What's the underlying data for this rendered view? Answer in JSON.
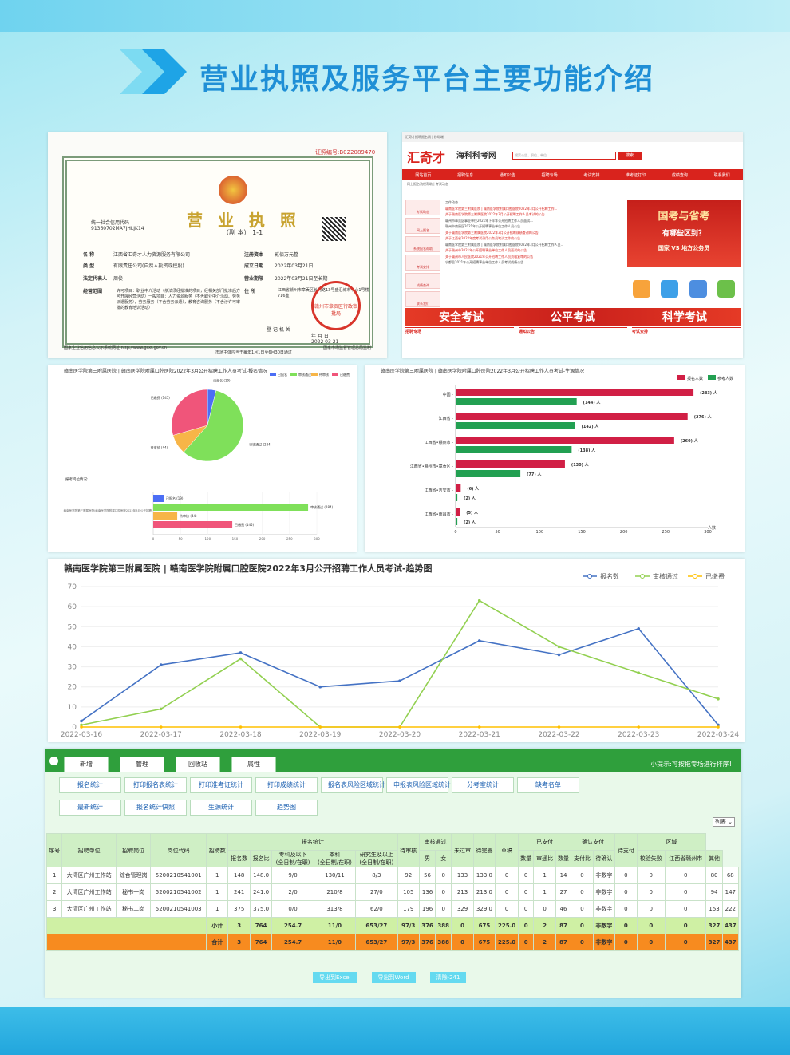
{
  "page": {
    "title": "营业执照及服务平台主要功能介绍"
  },
  "license": {
    "number_label": "证照编号:",
    "number": "B022089470",
    "title": "营 业 执 照",
    "copy": "（副 本）",
    "copy_index": "1-1",
    "usc_label": "统一社会信用代码",
    "usc": "91360702MA7JHLJK14",
    "name_label": "名 称",
    "name": "江西省汇奇才人力资源服务有限公司",
    "type_label": "类 型",
    "type": "有限责任公司(自然人投资或控股)",
    "rep_label": "法定代表人",
    "rep": "周俊",
    "scope_label": "经营范围",
    "scope": "许可项目：职业中介活动（依法须经批准的项目，经相关部门批准后方可开展经营活动）一般项目：人力资源服务（不含职业中介活动、劳务派遣服务），劳务服务（不含劳务派遣），教育咨询服务（不含涉许可审批的教育培训活动）",
    "capital_label": "注册资本",
    "capital": "贰佰万元整",
    "date_label": "成立日期",
    "date": "2022年03月21日",
    "term_label": "营业期限",
    "term": "2022年03月21日至长期",
    "addr_label": "住 所",
    "addr": "江西省赣州市章贡区长冈路13号盛汇城市中心1号楼716室",
    "authority_label": "登 记 机 关",
    "seal": "赣州市章贡区行政审批局",
    "seal_date": "2022 03 21",
    "year_label": "年 月 日",
    "foot_left": "国家企业信用信息公示系统网址",
    "foot_url": "http://www.gsxt.gov.cn",
    "foot_mid": "市场主体应当于每年1月1日至6月30日通过",
    "foot_right": "国家市场监督管理总局监制"
  },
  "portal": {
    "topbar": "汇奇才招聘报名网  |  移动端",
    "logo": "汇奇才",
    "logo2": "海科科考网",
    "search_placeholder": "搜索公告、职位、单位",
    "search_btn": "搜索",
    "nav": [
      "网站首页",
      "招聘信息",
      "通知公告",
      "招聘专场",
      "考试安排",
      "准考证打印",
      "成绩查询",
      "联系我们"
    ],
    "crumb": "网上报名流程帮助  |  考试动态",
    "side": [
      "考试动态",
      "网上报名",
      "系统报名帮助",
      "考试安排",
      "成绩查询",
      "联系我们"
    ],
    "news": [
      {
        "t": "工作动态",
        "r": false
      },
      {
        "t": "赣南医学院第三附属医院 | 赣南医学院附属口腔医院2022年3月公开招聘工作...",
        "r": true
      },
      {
        "t": "关于赣南医学院第三附属医院2022年3月公开招聘工作人员考试的公告",
        "r": true
      },
      {
        "t": "赣州市章贡区事业单位2021年下半年公开招聘工作人员面试...",
        "r": false
      },
      {
        "t": "赣州市南康区2021年公开招聘事业单位工作人员公告",
        "r": false
      },
      {
        "t": "关于赣南医学院第三附属医院2022年3月公开招聘成绩查询的公告",
        "r": true
      },
      {
        "t": "关于江西省2022年度考试录用公务员笔试工作的公告",
        "r": true
      },
      {
        "t": "赣南医学院第三附属医院 | 赣南医学院附属口腔医院2022年3月公开招聘工作人员...",
        "r": false
      },
      {
        "t": "关于赣州市2021年公开招聘事业单位工作人员面试的公告",
        "r": true
      },
      {
        "t": "关于赣州市人民医院2021年公开招聘工作人员资格复审的公告",
        "r": true
      },
      {
        "t": "宁都县2021年公开招聘事业单位工作人员考试成绩公告",
        "r": false
      }
    ],
    "ad1": "国考与省考",
    "ad2": "有哪些区别？",
    "ad3": "国家  VS  地方公务员",
    "banner": [
      "安全考试",
      "公平考试",
      "科学考试"
    ],
    "bottom_titles": [
      "招聘专场",
      "通知公告",
      "考试安排"
    ]
  },
  "chart_pie_title": "赣南医学院第三附属医院 | 赣南医学院附属口腔医院2022年3月公开招聘工作人员考试-报名情况",
  "chart_bar_title": "赣南医学院第三附属医院 | 赣南医学院附属口腔医院2022年3月公开招聘工作人员考试-生源情况",
  "chart_trend_title": "赣南医学院第三附属医院 | 赣南医学院附属口腔医院2022年3月公开招聘工作人员考试-趋势图",
  "chart_data": [
    {
      "type": "pie",
      "legend": [
        "已报名",
        "审核通过",
        "待审核",
        "已缴费"
      ],
      "colors": [
        "#4c6ef5",
        "#7fe05a",
        "#f7b548",
        "#f0557a"
      ],
      "slices": [
        {
          "name": "已报名",
          "value": 19
        },
        {
          "name": "审核通过",
          "value": 284
        },
        {
          "name": "待审核",
          "value": 44
        },
        {
          "name": "已缴费",
          "value": 145
        }
      ],
      "slice_labels": [
        "已报名 (19)",
        "审核通过 (284)",
        "待审核 (44)",
        "已缴费 (145)"
      ],
      "sub_label": "报考岗位情况:",
      "bar_category": "赣南医学院第三附属医院|赣南医学院附属口腔医院2022年3月公开招聘",
      "bar_values": [
        19,
        284,
        44,
        145
      ],
      "xlim": [
        0,
        300
      ],
      "xticks": [
        "0",
        "50",
        "100",
        "150",
        "200",
        "250",
        "300"
      ]
    },
    {
      "type": "bar",
      "orientation": "horizontal",
      "legend": [
        "报名人数",
        "参考人数"
      ],
      "colors": [
        "#d11f45",
        "#22a052"
      ],
      "categories": [
        "中国",
        "江西省",
        "江西省•赣州市",
        "江西省•赣州市•章贡区",
        "江西省•吉安市",
        "江西省•南昌市"
      ],
      "series": [
        {
          "name": "报名人数",
          "values": [
            283,
            276,
            260,
            130,
            6,
            5
          ]
        },
        {
          "name": "参考人数",
          "values": [
            144,
            142,
            138,
            77,
            2,
            2
          ]
        }
      ],
      "xlim": [
        0,
        300
      ],
      "xticks": [
        "0",
        "50",
        "100",
        "150",
        "200",
        "250",
        "300"
      ],
      "unit_label": "人",
      "xlabel": "人数"
    },
    {
      "type": "line",
      "x": [
        "2022-03-16",
        "2022-03-17",
        "2022-03-18",
        "2022-03-19",
        "2022-03-20",
        "2022-03-21",
        "2022-03-22",
        "2022-03-23",
        "2022-03-24"
      ],
      "series": [
        {
          "name": "报名数",
          "color": "#4472c4",
          "values": [
            3,
            31,
            37,
            20,
            23,
            43,
            36,
            49,
            1
          ]
        },
        {
          "name": "审核通过",
          "color": "#92d050",
          "values": [
            1,
            9,
            34,
            0,
            0,
            63,
            40,
            27,
            14
          ]
        },
        {
          "name": "已缴费",
          "color": "#ffc000",
          "values": [
            0,
            0,
            0,
            0,
            0,
            0,
            0,
            0,
            0
          ]
        }
      ],
      "ylim": [
        0,
        70
      ],
      "yticks": [
        "0",
        "10",
        "20",
        "30",
        "40",
        "50",
        "60",
        "70"
      ]
    }
  ],
  "admin": {
    "top_tabs": [
      "新增",
      "管理",
      "回收站",
      "属性"
    ],
    "tip": "小提示:可按拖专场进行排序!",
    "row1": [
      "报名统计",
      "打印报名表统计",
      "打印准考证统计",
      "打印成绩统计",
      "报名表风险区域统计",
      "申报表风险区域统计",
      "分考室统计",
      "缺考名单"
    ],
    "row2": [
      "最新统计",
      "报名统计快照",
      "生源统计",
      "趋势图"
    ],
    "list_btn": "列表 ⌄",
    "head1": [
      "序号",
      "招聘单位",
      "招聘岗位",
      "岗位代码",
      "招聘数",
      "报名统计",
      "待审核",
      "审核通过",
      "未过审",
      "待完善",
      "草稿",
      "已支付",
      "确认支付",
      "待支付",
      "区域"
    ],
    "head2": [
      "报名数",
      "报名比",
      "专科及以下\n(全日制/在职)",
      "本科\n(全日制/在职)",
      "研究生及以上\n(全日制/在职)",
      "男",
      "女",
      "数量",
      "审通比",
      "数量",
      "支付比",
      "待确认",
      "校验失败",
      "江西省赣州市",
      "其他"
    ],
    "rows": [
      [
        "1",
        "大湾区广州工作站",
        "综合管理岗",
        "5200210541001",
        "1",
        "148",
        "148.0",
        "9/0",
        "130/11",
        "8/3",
        "92",
        "56",
        "0",
        "133",
        "133.0",
        "0",
        "0",
        "1",
        "14",
        "0",
        "非数字",
        "0",
        "0",
        "0",
        "80",
        "68"
      ],
      [
        "2",
        "大湾区广州工作站",
        "秘书一岗",
        "5200210541002",
        "1",
        "241",
        "241.0",
        "2/0",
        "210/8",
        "27/0",
        "105",
        "136",
        "0",
        "213",
        "213.0",
        "0",
        "0",
        "1",
        "27",
        "0",
        "非数字",
        "0",
        "0",
        "0",
        "94",
        "147"
      ],
      [
        "3",
        "大湾区广州工作站",
        "秘书二岗",
        "5200210541003",
        "1",
        "375",
        "375.0",
        "0/0",
        "313/8",
        "62/0",
        "179",
        "196",
        "0",
        "329",
        "329.0",
        "0",
        "0",
        "0",
        "46",
        "0",
        "非数字",
        "0",
        "0",
        "0",
        "153",
        "222"
      ]
    ],
    "subtotal": [
      "小计",
      "3",
      "764",
      "254.7",
      "11/0",
      "653/27",
      "97/3",
      "376",
      "388",
      "0",
      "675",
      "225.0",
      "0",
      "2",
      "87",
      "0",
      "非数字",
      "0",
      "0",
      "0",
      "327",
      "437"
    ],
    "total": [
      "合计",
      "3",
      "764",
      "254.7",
      "11/0",
      "653/27",
      "97/3",
      "376",
      "388",
      "0",
      "675",
      "225.0",
      "0",
      "2",
      "87",
      "0",
      "非数字",
      "0",
      "0",
      "0",
      "327",
      "437"
    ],
    "buttons": [
      "导出到Excel",
      "导出到Word",
      "清除-241"
    ]
  }
}
